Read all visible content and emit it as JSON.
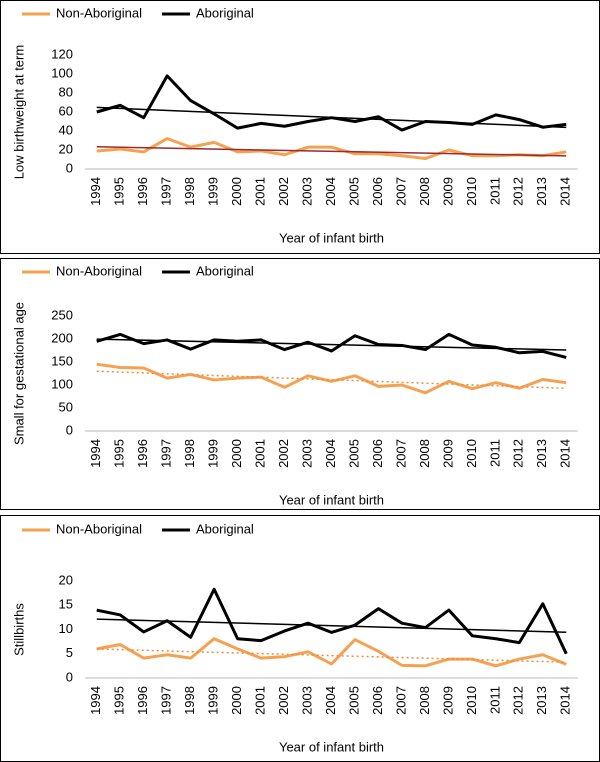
{
  "chart_data": [
    {
      "type": "line",
      "y_label": "Low birthweight at term",
      "x_label": "Year of infant birth",
      "categories": [
        "1994",
        "1995",
        "1996",
        "1997",
        "1998",
        "1999",
        "2000",
        "2001",
        "2002",
        "2003",
        "2004",
        "2005",
        "2006",
        "2007",
        "2008",
        "2009",
        "2010",
        "2011",
        "2012",
        "2013",
        "2014"
      ],
      "series": [
        {
          "name": "Non-Aboriginal",
          "color": "#f4a252",
          "trend_color": "#9b2a2a",
          "trend_dash": "none",
          "values": [
            19,
            21,
            18,
            32,
            23,
            28,
            18,
            19,
            15,
            23,
            23,
            16,
            16,
            14,
            11,
            20,
            14,
            14,
            15,
            14,
            18
          ]
        },
        {
          "name": "Aboriginal",
          "color": "#000000",
          "trend_color": "#000000",
          "trend_dash": "none",
          "values": [
            60,
            67,
            54,
            98,
            72,
            58,
            43,
            48,
            45,
            50,
            54,
            50,
            55,
            41,
            50,
            49,
            47,
            57,
            52,
            44,
            47
          ]
        }
      ],
      "ylim": [
        0,
        120
      ],
      "yticks": [
        0,
        20,
        40,
        60,
        80,
        100,
        120
      ],
      "trendline": true
    },
    {
      "type": "line",
      "y_label": "Small for gestational age",
      "x_label": "Year of infant birth",
      "categories": [
        "1994",
        "1995",
        "1996",
        "1997",
        "1998",
        "1999",
        "2000",
        "2001",
        "2002",
        "2003",
        "2004",
        "2005",
        "2006",
        "2007",
        "2008",
        "2009",
        "2010",
        "2011",
        "2012",
        "2013",
        "2014"
      ],
      "series": [
        {
          "name": "Non-Aboriginal",
          "color": "#f4a252",
          "trend_color": "#f08a3a",
          "trend_dash": "2 3",
          "values": [
            145,
            138,
            137,
            115,
            123,
            111,
            115,
            117,
            95,
            120,
            108,
            120,
            97,
            100,
            83,
            108,
            92,
            105,
            93,
            112,
            105
          ]
        },
        {
          "name": "Aboriginal",
          "color": "#000000",
          "trend_color": "#000000",
          "trend_dash": "none",
          "values": [
            195,
            210,
            190,
            198,
            178,
            198,
            195,
            198,
            177,
            193,
            174,
            207,
            188,
            186,
            177,
            210,
            187,
            182,
            170,
            173,
            160
          ]
        }
      ],
      "ylim": [
        0,
        250
      ],
      "yticks": [
        0,
        50,
        100,
        150,
        200,
        250
      ],
      "trendline": true
    },
    {
      "type": "line",
      "y_label": "Stillbirths",
      "x_label": "Year of infant birth",
      "categories": [
        "1994",
        "1995",
        "1996",
        "1997",
        "1998",
        "1999",
        "2000",
        "2001",
        "2002",
        "2003",
        "2004",
        "2005",
        "2006",
        "2007",
        "2008",
        "2009",
        "2010",
        "2011",
        "2012",
        "2013",
        "2014"
      ],
      "series": [
        {
          "name": "Non-Aboriginal",
          "color": "#f4a252",
          "trend_color": "#f08a3a",
          "trend_dash": "2 3",
          "values": [
            6,
            6.9,
            4.1,
            4.8,
            4.1,
            8.1,
            6,
            4.1,
            4.4,
            5.4,
            2.9,
            7.9,
            5.5,
            2.6,
            2.5,
            3.9,
            3.9,
            2.5,
            3.9,
            4.8,
            2.8
          ]
        },
        {
          "name": "Aboriginal",
          "color": "#000000",
          "trend_color": "#000000",
          "trend_dash": "none",
          "values": [
            14,
            13,
            9.5,
            11.8,
            8.4,
            18.3,
            8.1,
            7.7,
            9.7,
            11.3,
            9.4,
            10.9,
            14.3,
            11.3,
            10.4,
            14,
            8.7,
            8.1,
            7.3,
            15.3,
            5
          ]
        }
      ],
      "ylim": [
        0,
        20
      ],
      "yticks": [
        0,
        5,
        10,
        15,
        20
      ],
      "trendline": true
    }
  ]
}
